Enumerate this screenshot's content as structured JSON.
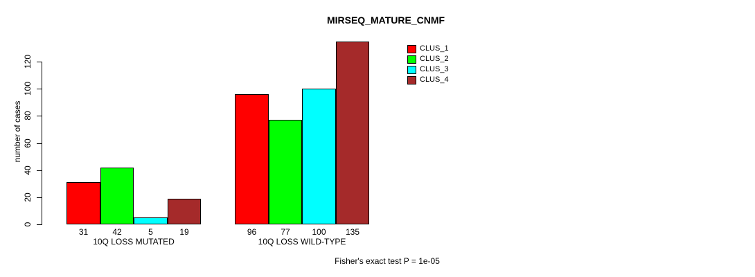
{
  "chart_data": {
    "type": "bar",
    "title": "MIRSEQ_MATURE_CNMF",
    "xlabel": "",
    "ylabel": "number of cases",
    "categories": [
      "10Q LOSS MUTATED",
      "10Q LOSS WILD-TYPE"
    ],
    "series": [
      {
        "name": "CLUS_1",
        "color": "#FF0000",
        "values": [
          31,
          96
        ]
      },
      {
        "name": "CLUS_2",
        "color": "#00FF00",
        "values": [
          42,
          77
        ]
      },
      {
        "name": "CLUS_3",
        "color": "#00FFFF",
        "values": [
          5,
          100
        ]
      },
      {
        "name": "CLUS_4",
        "color": "#A52A2A",
        "values": [
          19,
          135
        ]
      }
    ],
    "yticks": [
      0,
      20,
      40,
      60,
      80,
      100,
      120
    ],
    "ylim": [
      0,
      137
    ],
    "grid": false,
    "legend_position": "top-right",
    "bar_value_labels_shown": true,
    "annotation": "Fisher's exact test P = 1e-05"
  }
}
